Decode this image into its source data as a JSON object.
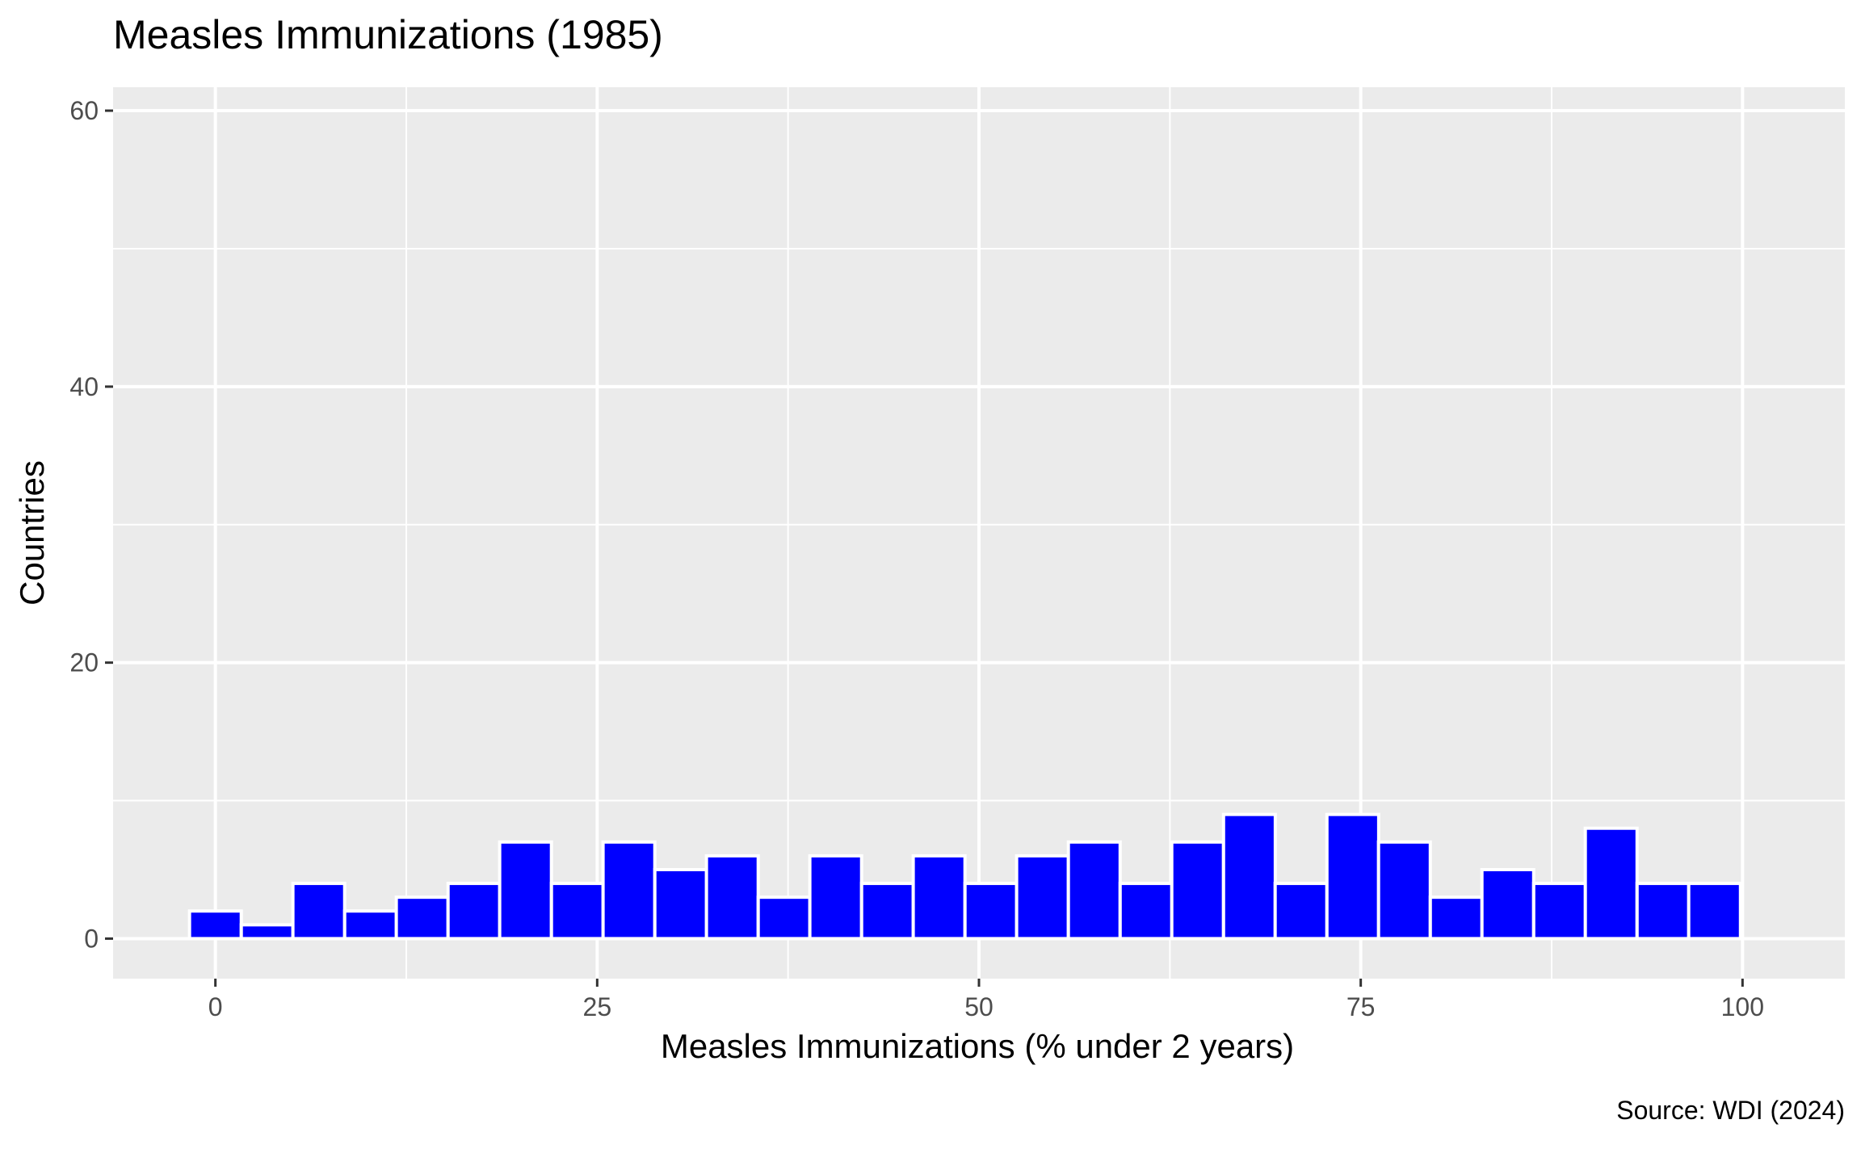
{
  "chart_data": {
    "type": "bar",
    "title": "Measles Immunizations (1985)",
    "xlabel": "Measles Immunizations (% under 2 years)",
    "ylabel": "Countries",
    "caption": "Source: WDI (2024)",
    "xlim": [
      -6.7,
      106.7
    ],
    "ylim": [
      -2.9,
      61.7
    ],
    "x_ticks": [
      0,
      25,
      50,
      75,
      100
    ],
    "x_tick_labels": [
      "0",
      "25",
      "50",
      "75",
      "100"
    ],
    "y_ticks": [
      0,
      20,
      40,
      60
    ],
    "y_tick_labels": [
      "0",
      "20",
      "40",
      "60"
    ],
    "bin_width": 3.39,
    "bins": [
      {
        "x": 0.0,
        "count": 2
      },
      {
        "x": 3.39,
        "count": 1
      },
      {
        "x": 6.77,
        "count": 4
      },
      {
        "x": 10.16,
        "count": 2
      },
      {
        "x": 13.54,
        "count": 3
      },
      {
        "x": 16.93,
        "count": 4
      },
      {
        "x": 20.31,
        "count": 7
      },
      {
        "x": 23.7,
        "count": 4
      },
      {
        "x": 27.08,
        "count": 7
      },
      {
        "x": 30.47,
        "count": 5
      },
      {
        "x": 33.85,
        "count": 6
      },
      {
        "x": 37.24,
        "count": 3
      },
      {
        "x": 40.62,
        "count": 6
      },
      {
        "x": 44.01,
        "count": 4
      },
      {
        "x": 47.39,
        "count": 6
      },
      {
        "x": 50.78,
        "count": 4
      },
      {
        "x": 54.16,
        "count": 6
      },
      {
        "x": 57.55,
        "count": 7
      },
      {
        "x": 60.94,
        "count": 4
      },
      {
        "x": 64.32,
        "count": 7
      },
      {
        "x": 67.71,
        "count": 9
      },
      {
        "x": 71.09,
        "count": 4
      },
      {
        "x": 74.48,
        "count": 9
      },
      {
        "x": 77.86,
        "count": 7
      },
      {
        "x": 81.25,
        "count": 3
      },
      {
        "x": 84.63,
        "count": 5
      },
      {
        "x": 88.02,
        "count": 4
      },
      {
        "x": 91.4,
        "count": 8
      },
      {
        "x": 94.79,
        "count": 4
      },
      {
        "x": 98.17,
        "count": 4
      }
    ],
    "bar_fill": "#0000ff",
    "bar_outline": "#ffffff",
    "panel_background": "#ebebeb",
    "grid_color": "#ffffff",
    "grid": true,
    "legend": "none"
  }
}
